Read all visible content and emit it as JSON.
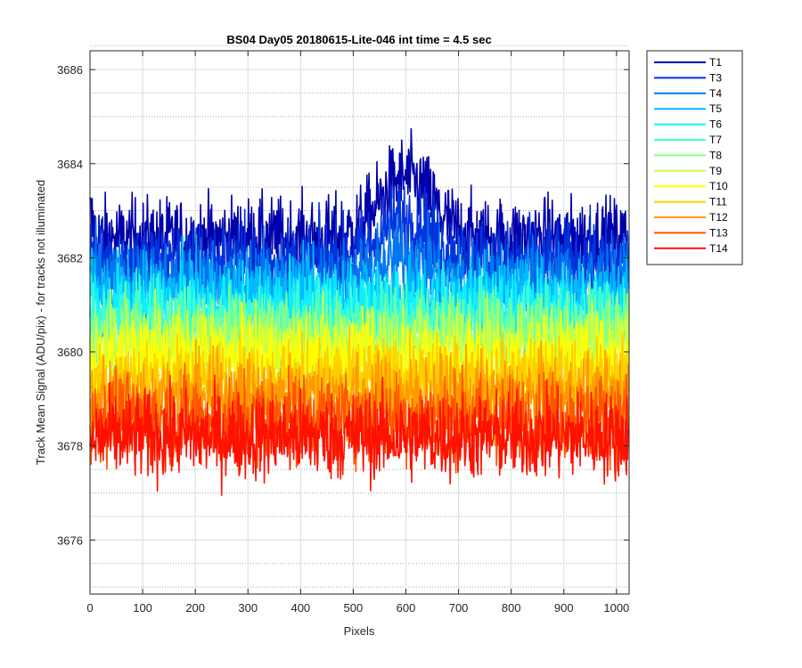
{
  "chart_data": {
    "type": "line",
    "title": "BS04 Day05 20180615-Lite-046 int time = 4.5 sec",
    "xlabel": "Pixels",
    "ylabel": "Track Mean Signal (ADU/pix) - for tracks not illuminated",
    "xlim": [
      0,
      1024
    ],
    "ylim": [
      3674.85,
      3686.4
    ],
    "x_ticks": [
      0,
      100,
      200,
      300,
      400,
      500,
      600,
      700,
      800,
      900,
      1000
    ],
    "y_ticks": [
      3676,
      3678,
      3680,
      3682,
      3684,
      3686
    ],
    "y_minor_ticks": [
      3675,
      3675.5,
      3676.5,
      3677,
      3677.5,
      3678.5,
      3679,
      3679.5,
      3680.5,
      3681,
      3681.5,
      3682.5,
      3683,
      3683.5,
      3684.5,
      3685,
      3685.5,
      3686.5
    ],
    "grid": true,
    "minor_grid": true,
    "legend_position": "outside-top-right",
    "n_points_per_series": 1024,
    "series": [
      {
        "name": "T1",
        "color": "#0000aa",
        "mean": 3682.4,
        "noise": 0.8
      },
      {
        "name": "T3",
        "color": "#0033dd",
        "mean": 3681.9,
        "noise": 0.8
      },
      {
        "name": "T4",
        "color": "#0077ee",
        "mean": 3681.5,
        "noise": 0.8
      },
      {
        "name": "T5",
        "color": "#00bbff",
        "mean": 3681.2,
        "noise": 0.8
      },
      {
        "name": "T6",
        "color": "#11eeff",
        "mean": 3680.9,
        "noise": 0.8
      },
      {
        "name": "T7",
        "color": "#44ffcc",
        "mean": 3680.6,
        "noise": 0.8
      },
      {
        "name": "T8",
        "color": "#88ff88",
        "mean": 3680.4,
        "noise": 0.8
      },
      {
        "name": "T9",
        "color": "#ccff44",
        "mean": 3680.1,
        "noise": 0.8
      },
      {
        "name": "T10",
        "color": "#ffff00",
        "mean": 3679.8,
        "noise": 0.8
      },
      {
        "name": "T11",
        "color": "#ffcc00",
        "mean": 3679.4,
        "noise": 0.8
      },
      {
        "name": "T12",
        "color": "#ff9900",
        "mean": 3679.0,
        "noise": 0.85
      },
      {
        "name": "T13",
        "color": "#ff5500",
        "mean": 3678.6,
        "noise": 0.85
      },
      {
        "name": "T14",
        "color": "#ff1100",
        "mean": 3678.2,
        "noise": 0.85
      }
    ]
  }
}
